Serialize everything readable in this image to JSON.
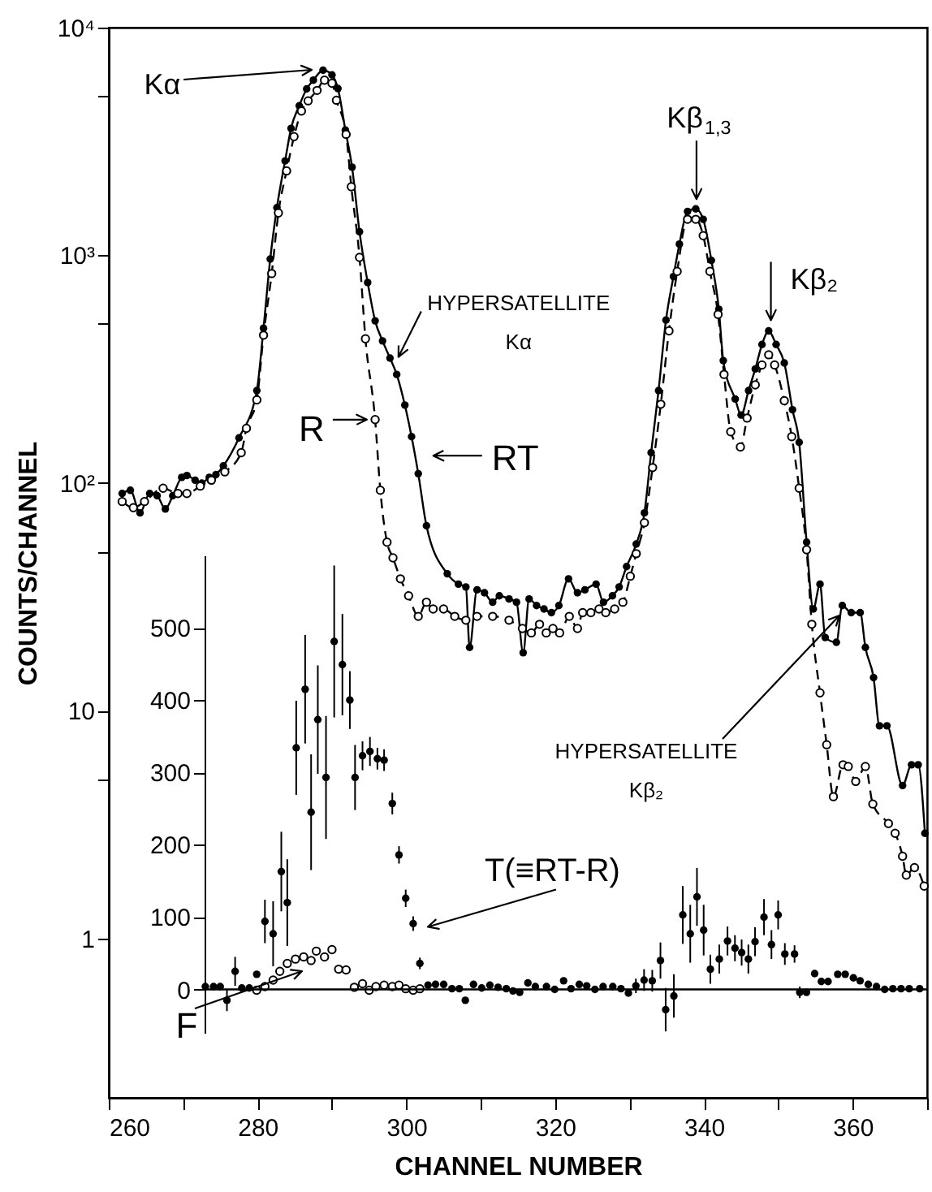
{
  "chart_data": [
    {
      "type": "line",
      "xlabel": "CHANNEL NUMBER",
      "ylabel": "COUNTS/CHANNEL",
      "log": "y",
      "grid": false,
      "xlim": [
        260,
        370
      ],
      "ylim": [
        0.2,
        10000
      ],
      "xticks": [
        260,
        {
          "value": 270,
          "label": null
        },
        280,
        {
          "value": 290,
          "label": null
        },
        300,
        {
          "value": 310,
          "label": null
        },
        320,
        {
          "value": 330,
          "label": null
        },
        340,
        {
          "value": 350,
          "label": null
        },
        360,
        {
          "value": 370,
          "label": null
        }
      ],
      "yticks": [
        {
          "value": 1,
          "label": "1"
        },
        {
          "value": 5,
          "label": null
        },
        {
          "value": 10,
          "label": "10"
        },
        {
          "value": 50,
          "label": null
        },
        {
          "value": 100,
          "label": "10²"
        },
        {
          "value": 500,
          "label": null
        },
        {
          "value": 1000,
          "label": "10³"
        },
        {
          "value": 5000,
          "label": null
        },
        {
          "value": 10000,
          "label": "10⁴"
        }
      ],
      "series": [
        {
          "color": "#000000",
          "marker": "circle",
          "line_style": "solid",
          "x": [
            261.8,
            262.9,
            264.2,
            265.5,
            266.5,
            267.6,
            268.6,
            269.8,
            270.5,
            271.6,
            272.5,
            273.5,
            274.4,
            275.4,
            277.5,
            279.9,
            280.8,
            281.7,
            282.6,
            283.7,
            284.5,
            285.6,
            286.6,
            287.5,
            288.8,
            290,
            290.8,
            291.8,
            292.7,
            293.7,
            294.8,
            295.8,
            296.8,
            297.8,
            298.7,
            299.8,
            300.7,
            301.6,
            302.7,
            305.5,
            307,
            308,
            308.5,
            309.5,
            310.5,
            311.6,
            312.5,
            313.8,
            314.8,
            315.7,
            316.5,
            317.5,
            318.5,
            319.5,
            320.5,
            321.8,
            323,
            324,
            325.5,
            326.5,
            327.7,
            328.6,
            329.6,
            330.9,
            332,
            332.9,
            333.9,
            334.9,
            335.9,
            336.7,
            337.8,
            338.9,
            339.9,
            341,
            342,
            342.6,
            344.2,
            345,
            346,
            346.9,
            347.8,
            348.7,
            349.7,
            350.8,
            351.9,
            352.8,
            353.8,
            354.7,
            355.6,
            356.3,
            357.8,
            358.6,
            359.8,
            361,
            361.7,
            362.8,
            363.6,
            364.6,
            366.7,
            367.9,
            368.8,
            369.7
          ],
          "values": [
            90,
            93,
            74,
            90,
            88,
            77,
            88,
            106,
            108,
            103,
            100,
            106,
            109,
            119,
            158,
            255,
            479,
            964,
            1620,
            2600,
            3610,
            4540,
            5380,
            5880,
            6500,
            6200,
            5400,
            3550,
            2440,
            1270,
            760,
            516,
            421,
            354,
            300,
            220,
            160,
            110,
            65,
            40,
            36,
            35,
            19,
            34,
            33,
            30,
            32,
            31,
            30,
            18,
            31,
            29,
            28,
            27,
            29,
            38,
            33,
            34,
            36,
            30,
            32,
            35,
            43,
            54,
            74,
            136,
            255,
            520,
            807,
            1120,
            1560,
            1600,
            1440,
            950,
            580,
            345,
            234,
            199,
            255,
            317,
            406,
            466,
            406,
            337,
            210,
            151,
            55,
            28,
            36,
            21,
            20,
            29,
            27,
            27,
            19,
            14,
            8.6,
            8.6,
            4.7,
            5.8,
            5.8,
            2.9
          ]
        },
        {
          "color": "#000000",
          "marker": "circle-open",
          "line_style": "dashed",
          "x": [
            261.8,
            263.3,
            264.8,
            267.3,
            269.3,
            270.5,
            272.3,
            273.8,
            275.6,
            277.8,
            278.5,
            279.9,
            280.8,
            281.9,
            282.8,
            283.9,
            284.9,
            285.9,
            286.8,
            288,
            289,
            290,
            290.6,
            291.9,
            292.6,
            293.7,
            294.5,
            295.8,
            296.5,
            297.4,
            298.2,
            299.2,
            300.3,
            301.6,
            302.7,
            303.6,
            305,
            306.5,
            308,
            309.5,
            311.6,
            313.8,
            315.6,
            316.8,
            317.9,
            318.8,
            319.7,
            320.6,
            321.9,
            323,
            323.7,
            324.8,
            325.9,
            326.8,
            328,
            329.1,
            330.1,
            330.9,
            332,
            333.1,
            334.2,
            335.3,
            336.4,
            337.8,
            338.9,
            339.9,
            340.8,
            341.9,
            342.7,
            343.6,
            344.9,
            345.8,
            346.9,
            347.8,
            348.7,
            349.5,
            350.8,
            351.8,
            352.8,
            353.8,
            354.5,
            355.6,
            356.5,
            357.4,
            358.7,
            359.4,
            360.4,
            361.7,
            362.7,
            364.8,
            365.7,
            366.7,
            367.2,
            368.3,
            369.6
          ],
          "values": [
            83,
            78,
            83,
            95,
            90,
            90,
            97,
            103,
            112,
            136,
            174,
            232,
            446,
            832,
            1535,
            2350,
            3320,
            4300,
            4770,
            5300,
            5880,
            5700,
            4800,
            3400,
            2000,
            980,
            430,
            190,
            93,
            55,
            47,
            38,
            32,
            26,
            30,
            28,
            28,
            26,
            25,
            26,
            26,
            25,
            23,
            22,
            24,
            22,
            23,
            22,
            26,
            23,
            27,
            27,
            28,
            27,
            28,
            30,
            39,
            49,
            67,
            117,
            222,
            466,
            850,
            1440,
            1440,
            1220,
            850,
            550,
            300,
            168,
            144,
            193,
            270,
            330,
            366,
            330,
            230,
            160,
            95,
            51,
            24,
            12,
            7.1,
            4.2,
            5.8,
            5.7,
            4.9,
            5.7,
            3.9,
            3.2,
            2.9,
            2.3,
            1.9,
            2.05,
            1.7
          ]
        }
      ],
      "annotations": [
        "Kα",
        {
          "text": "Kβ$_{1,3}$",
          "x": 339,
          "y": 1600
        },
        {
          "text": "Kβ₂",
          "x": 349,
          "y": 470
        },
        {
          "text": "HYPERSATELLITE\nKα",
          "x": 298.5,
          "y": 330
        },
        {
          "text": "R",
          "x": 296,
          "y": 190
        },
        {
          "text": "RT",
          "x": 301,
          "y": 132
        },
        "HYPERSATELLITE\nKβ₂"
      ]
    },
    {
      "type": "scatter",
      "xlim": [
        273,
        370
      ],
      "ylim": [
        -60,
        600
      ],
      "xticks": [
        280,
        300,
        320,
        340,
        360
      ],
      "yticks": [
        0,
        100,
        200,
        300,
        400,
        500
      ],
      "tick_labels": "y",
      "grid": false,
      "ref_lines": [
        {
          "axis": "y",
          "value": 0
        }
      ],
      "series": [
        {
          "color": "#000000",
          "marker": "circle",
          "x": [
            273.1,
            274.2,
            275.1,
            276,
            277.1,
            278,
            279,
            280,
            281.1,
            282.2,
            283.3,
            284.1,
            285.3,
            286.5,
            287.3,
            288.2,
            289.3,
            290.4,
            291.5,
            292.5,
            293.2,
            294.2,
            295.2,
            296.2,
            297.1,
            298.2,
            299.1,
            300,
            301,
            301.9,
            303,
            304,
            305.1,
            306.2,
            307.2,
            308,
            309.1,
            310.2,
            311.3,
            312.4,
            313.5,
            314.4,
            315.3,
            316.4,
            317.4,
            318.9,
            320,
            321.2,
            322.2,
            323.3,
            324.3,
            325.4,
            326.5,
            327.8,
            328.9,
            329.9,
            330.9,
            332,
            333.1,
            334.2,
            334.9,
            336,
            337.2,
            338.2,
            339.1,
            340,
            340.9,
            342.1,
            343.2,
            344.2,
            345.1,
            346,
            346.9,
            348.1,
            349.1,
            350,
            350.9,
            352.2,
            352.9,
            353.8,
            354.9,
            355.8,
            356.7,
            358,
            359,
            360.1,
            361,
            362.1,
            363.2,
            364.3,
            365.4,
            366.5,
            367.6,
            369
          ],
          "values": [
            4,
            4,
            4,
            -15,
            25,
            2,
            2,
            21,
            94,
            77,
            163,
            120,
            334,
            415,
            245,
            373,
            293,
            481,
            449,
            400,
            293,
            323,
            329,
            319,
            317,
            257,
            186,
            126,
            91,
            36,
            6,
            7,
            7,
            1,
            1,
            -15,
            7,
            2,
            6,
            3,
            1,
            -2,
            -4,
            9,
            4,
            4,
            0,
            12,
            1,
            7,
            5,
            0,
            4,
            4,
            1,
            -5,
            5,
            13,
            12,
            40,
            -28,
            -9,
            103,
            77,
            128,
            82,
            28,
            42,
            67,
            57,
            51,
            42,
            66,
            100,
            62,
            103,
            49,
            49,
            -4,
            -4,
            22,
            11,
            11,
            21,
            21,
            16,
            12,
            7,
            4,
            0,
            1,
            1,
            1,
            1
          ],
          "errors": [
            null,
            null,
            null,
            15,
            20,
            null,
            null,
            null,
            30,
            45,
            55,
            60,
            65,
            75,
            80,
            75,
            85,
            105,
            70,
            40,
            45,
            20,
            20,
            15,
            15,
            15,
            12,
            12,
            10,
            8,
            null,
            null,
            null,
            null,
            null,
            null,
            null,
            null,
            null,
            null,
            null,
            null,
            null,
            null,
            null,
            null,
            null,
            null,
            null,
            null,
            null,
            null,
            null,
            null,
            null,
            null,
            10,
            15,
            15,
            25,
            30,
            30,
            40,
            40,
            40,
            35,
            20,
            20,
            20,
            18,
            18,
            20,
            20,
            25,
            20,
            20,
            15,
            12,
            8,
            null,
            null,
            null,
            null,
            null,
            null,
            null,
            null,
            null,
            null,
            null,
            null,
            null,
            null,
            null
          ]
        },
        {
          "color": "#000000",
          "marker": "circle-open",
          "x": [
            280,
            281.1,
            282.2,
            283.1,
            284.1,
            285.2,
            286.3,
            287.3,
            288,
            289.1,
            290.1,
            291,
            292,
            293.1,
            294.2,
            295.1,
            296,
            297.1,
            298.2,
            299.1,
            300,
            301,
            301.9
          ],
          "values": [
            -1,
            4,
            13,
            25,
            36,
            42,
            45,
            40,
            53,
            45,
            55,
            28,
            27,
            3,
            8,
            -1,
            4,
            6,
            4,
            6,
            1,
            -1,
            1
          ]
        }
      ],
      "annotations": [
        {
          "text": "T(≡RT-R)",
          "x": 301,
          "y": 91
        },
        "F"
      ]
    }
  ]
}
